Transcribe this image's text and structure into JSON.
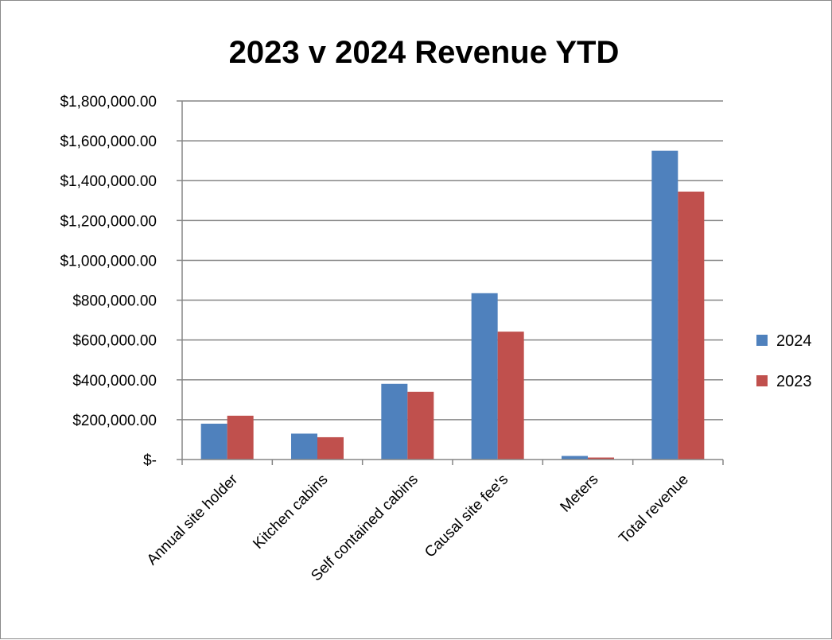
{
  "chart_data": {
    "type": "bar",
    "title": "2023 v 2024 Revenue YTD",
    "xlabel": "",
    "ylabel": "",
    "categories": [
      "Annual site holder",
      "Kitchen cabins",
      "Self contained cabins",
      "Causal site fee's",
      "Meters",
      "Total revenue"
    ],
    "series": [
      {
        "name": "2024",
        "color": "#4f81bd",
        "values": [
          180000,
          130000,
          380000,
          835000,
          18000,
          1550000
        ]
      },
      {
        "name": "2023",
        "color": "#c0504d",
        "values": [
          220000,
          112000,
          340000,
          642000,
          10000,
          1345000
        ]
      }
    ],
    "ylim": [
      0,
      1800000
    ],
    "yticks": [
      {
        "value": 0,
        "label": "$-"
      },
      {
        "value": 200000,
        "label": "$200,000.00"
      },
      {
        "value": 400000,
        "label": "$400,000.00"
      },
      {
        "value": 600000,
        "label": "$600,000.00"
      },
      {
        "value": 800000,
        "label": "$800,000.00"
      },
      {
        "value": 1000000,
        "label": "$1,000,000.00"
      },
      {
        "value": 1200000,
        "label": "$1,200,000.00"
      },
      {
        "value": 1400000,
        "label": "$1,400,000.00"
      },
      {
        "value": 1600000,
        "label": "$1,600,000.00"
      },
      {
        "value": 1800000,
        "label": "$1,800,000.00"
      }
    ],
    "grid": true,
    "gridline_color": "#868686",
    "legend_position": "right"
  }
}
